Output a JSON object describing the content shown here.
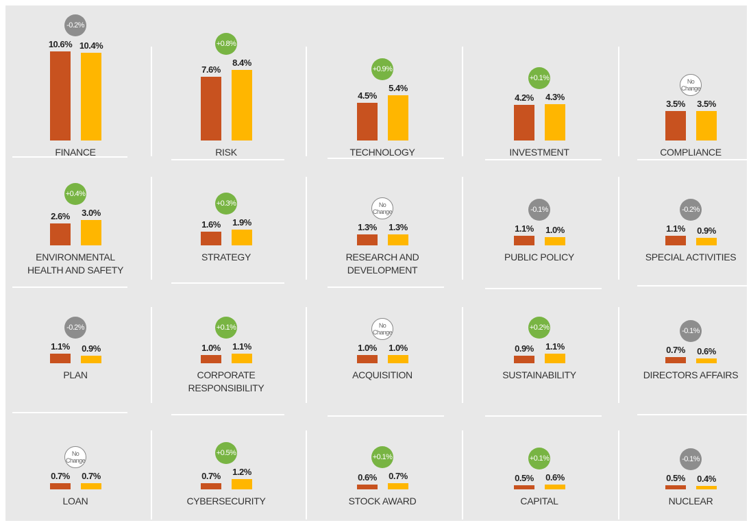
{
  "chart_data": [
    {
      "type": "bar",
      "title": "FINANCE",
      "values": [
        10.6,
        10.4
      ],
      "value_labels": [
        "10.6%",
        "10.4%"
      ],
      "colors": [
        "#c8521f",
        "#ffb600"
      ],
      "annotation": "-0.2%",
      "annotation_color": "#8d8d8d"
    },
    {
      "type": "bar",
      "title": "RISK",
      "values": [
        7.6,
        8.4
      ],
      "value_labels": [
        "7.6%",
        "8.4%"
      ],
      "colors": [
        "#c8521f",
        "#ffb600"
      ],
      "annotation": "+0.8%",
      "annotation_color": "#78b443"
    },
    {
      "type": "bar",
      "title": "TECHNOLOGY",
      "values": [
        4.5,
        5.4
      ],
      "value_labels": [
        "4.5%",
        "5.4%"
      ],
      "colors": [
        "#c8521f",
        "#ffb600"
      ],
      "annotation": "+0.9%",
      "annotation_color": "#78b443"
    },
    {
      "type": "bar",
      "title": "INVESTMENT",
      "values": [
        4.2,
        4.3
      ],
      "value_labels": [
        "4.2%",
        "4.3%"
      ],
      "colors": [
        "#c8521f",
        "#ffb600"
      ],
      "annotation": "+0.1%",
      "annotation_color": "#78b443"
    },
    {
      "type": "bar",
      "title": "COMPLIANCE",
      "values": [
        3.5,
        3.5
      ],
      "value_labels": [
        "3.5%",
        "3.5%"
      ],
      "colors": [
        "#c8521f",
        "#ffb600"
      ],
      "annotation": "No Change",
      "annotation_color": "#ffffff"
    },
    {
      "type": "bar",
      "title": "ENVIRONMENTAL HEALTH AND SAFETY",
      "values": [
        2.6,
        3.0
      ],
      "value_labels": [
        "2.6%",
        "3.0%"
      ],
      "colors": [
        "#c8521f",
        "#ffb600"
      ],
      "annotation": "+0.4%",
      "annotation_color": "#78b443"
    },
    {
      "type": "bar",
      "title": "STRATEGY",
      "values": [
        1.6,
        1.9
      ],
      "value_labels": [
        "1.6%",
        "1.9%"
      ],
      "colors": [
        "#c8521f",
        "#ffb600"
      ],
      "annotation": "+0.3%",
      "annotation_color": "#78b443"
    },
    {
      "type": "bar",
      "title": "RESEARCH AND DEVELOPMENT",
      "values": [
        1.3,
        1.3
      ],
      "value_labels": [
        "1.3%",
        "1.3%"
      ],
      "colors": [
        "#c8521f",
        "#ffb600"
      ],
      "annotation": "No Change",
      "annotation_color": "#ffffff"
    },
    {
      "type": "bar",
      "title": "PUBLIC POLICY",
      "values": [
        1.1,
        1.0
      ],
      "value_labels": [
        "1.1%",
        "1.0%"
      ],
      "colors": [
        "#c8521f",
        "#ffb600"
      ],
      "annotation": "-0.1%",
      "annotation_color": "#8d8d8d"
    },
    {
      "type": "bar",
      "title": "SPECIAL ACTIVITIES",
      "values": [
        1.1,
        0.9
      ],
      "value_labels": [
        "1.1%",
        "0.9%"
      ],
      "colors": [
        "#c8521f",
        "#ffb600"
      ],
      "annotation": "-0.2%",
      "annotation_color": "#8d8d8d"
    },
    {
      "type": "bar",
      "title": "PLAN",
      "values": [
        1.1,
        0.9
      ],
      "value_labels": [
        "1.1%",
        "0.9%"
      ],
      "colors": [
        "#c8521f",
        "#ffb600"
      ],
      "annotation": "-0.2%",
      "annotation_color": "#8d8d8d"
    },
    {
      "type": "bar",
      "title": "CORPORATE RESPONSIBILITY",
      "values": [
        1.0,
        1.1
      ],
      "value_labels": [
        "1.0%",
        "1.1%"
      ],
      "colors": [
        "#c8521f",
        "#ffb600"
      ],
      "annotation": "+0.1%",
      "annotation_color": "#78b443"
    },
    {
      "type": "bar",
      "title": "ACQUISITION",
      "values": [
        1.0,
        1.0
      ],
      "value_labels": [
        "1.0%",
        "1.0%"
      ],
      "colors": [
        "#c8521f",
        "#ffb600"
      ],
      "annotation": "No Change",
      "annotation_color": "#ffffff"
    },
    {
      "type": "bar",
      "title": "SUSTAINABILITY",
      "values": [
        0.9,
        1.1
      ],
      "value_labels": [
        "0.9%",
        "1.1%"
      ],
      "colors": [
        "#c8521f",
        "#ffb600"
      ],
      "annotation": "+0.2%",
      "annotation_color": "#78b443"
    },
    {
      "type": "bar",
      "title": "DIRECTORS AFFAIRS",
      "values": [
        0.7,
        0.6
      ],
      "value_labels": [
        "0.7%",
        "0.6%"
      ],
      "colors": [
        "#c8521f",
        "#ffb600"
      ],
      "annotation": "-0.1%",
      "annotation_color": "#8d8d8d"
    },
    {
      "type": "bar",
      "title": "LOAN",
      "values": [
        0.7,
        0.7
      ],
      "value_labels": [
        "0.7%",
        "0.7%"
      ],
      "colors": [
        "#c8521f",
        "#ffb600"
      ],
      "annotation": "No Change",
      "annotation_color": "#ffffff"
    },
    {
      "type": "bar",
      "title": "CYBERSECURITY",
      "values": [
        0.7,
        1.2
      ],
      "value_labels": [
        "0.7%",
        "1.2%"
      ],
      "colors": [
        "#c8521f",
        "#ffb600"
      ],
      "annotation": "+0.5%",
      "annotation_color": "#78b443"
    },
    {
      "type": "bar",
      "title": "STOCK AWARD",
      "values": [
        0.6,
        0.7
      ],
      "value_labels": [
        "0.6%",
        "0.7%"
      ],
      "colors": [
        "#c8521f",
        "#ffb600"
      ],
      "annotation": "+0.1%",
      "annotation_color": "#78b443"
    },
    {
      "type": "bar",
      "title": "CAPITAL",
      "values": [
        0.5,
        0.6
      ],
      "value_labels": [
        "0.5%",
        "0.6%"
      ],
      "colors": [
        "#c8521f",
        "#ffb600"
      ],
      "annotation": "+0.1%",
      "annotation_color": "#78b443"
    },
    {
      "type": "bar",
      "title": "NUCLEAR",
      "values": [
        0.5,
        0.4
      ],
      "value_labels": [
        "0.5%",
        "0.4%"
      ],
      "colors": [
        "#c8521f",
        "#ffb600"
      ],
      "annotation": "-0.1%",
      "annotation_color": "#8d8d8d"
    }
  ]
}
